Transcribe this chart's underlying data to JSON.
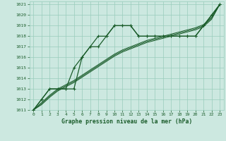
{
  "title": "Graphe pression niveau de la mer (hPa)",
  "background_color": "#cce8e0",
  "grid_color": "#99ccbb",
  "line_color": "#1a5c2a",
  "xlim": [
    -0.5,
    23.5
  ],
  "ylim": [
    1011,
    1021.3
  ],
  "yticks": [
    1011,
    1012,
    1013,
    1014,
    1015,
    1016,
    1017,
    1018,
    1019,
    1020,
    1021
  ],
  "xticks": [
    0,
    1,
    2,
    3,
    4,
    5,
    6,
    7,
    8,
    9,
    10,
    11,
    12,
    13,
    14,
    15,
    16,
    17,
    18,
    19,
    20,
    21,
    22,
    23
  ],
  "series": [
    {
      "y": [
        1011.0,
        1012.0,
        1013.0,
        1013.0,
        1013.0,
        1013.0,
        1016.0,
        1017.0,
        1018.0,
        1018.0,
        1019.0,
        1019.0,
        1019.0,
        1018.0,
        1018.0,
        1018.0,
        1018.0,
        1018.0,
        1018.0,
        1018.0,
        1018.0,
        1019.0,
        1020.0,
        1021.0
      ],
      "marker": true,
      "lw": 0.9
    },
    {
      "y": [
        1011.0,
        1012.0,
        1013.0,
        1013.0,
        1013.0,
        1015.0,
        1016.0,
        1017.0,
        1017.0,
        1018.0,
        1019.0,
        1019.0,
        1019.0,
        1018.0,
        1018.0,
        1018.0,
        1018.0,
        1018.0,
        1018.0,
        1018.0,
        1018.0,
        1019.0,
        1020.0,
        1021.0
      ],
      "marker": true,
      "lw": 0.9
    },
    {
      "y": [
        1011.0,
        1011.5,
        1012.2,
        1012.8,
        1013.2,
        1013.6,
        1014.1,
        1014.6,
        1015.1,
        1015.6,
        1016.1,
        1016.5,
        1016.8,
        1017.1,
        1017.4,
        1017.6,
        1017.8,
        1018.0,
        1018.2,
        1018.4,
        1018.6,
        1018.9,
        1019.6,
        1021.0
      ],
      "marker": false,
      "lw": 0.7
    },
    {
      "y": [
        1011.0,
        1011.6,
        1012.3,
        1012.9,
        1013.3,
        1013.7,
        1014.2,
        1014.7,
        1015.2,
        1015.7,
        1016.2,
        1016.6,
        1016.9,
        1017.2,
        1017.5,
        1017.7,
        1017.9,
        1018.1,
        1018.3,
        1018.5,
        1018.7,
        1019.0,
        1019.7,
        1021.0
      ],
      "marker": false,
      "lw": 0.7
    },
    {
      "y": [
        1011.0,
        1011.7,
        1012.4,
        1013.0,
        1013.4,
        1013.8,
        1014.3,
        1014.8,
        1015.3,
        1015.8,
        1016.3,
        1016.7,
        1017.0,
        1017.3,
        1017.6,
        1017.8,
        1018.0,
        1018.2,
        1018.4,
        1018.6,
        1018.8,
        1019.1,
        1019.8,
        1021.0
      ],
      "marker": false,
      "lw": 0.7
    }
  ],
  "title_fontsize": 5.8,
  "tick_fontsize": 4.5
}
